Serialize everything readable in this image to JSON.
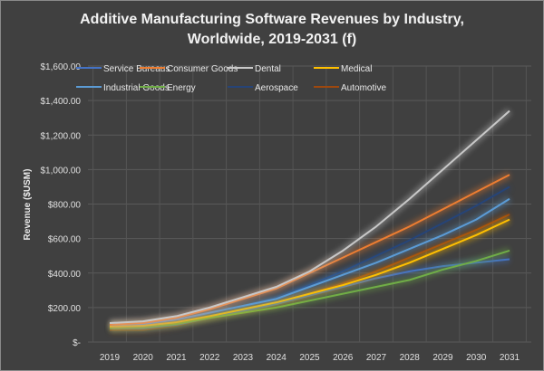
{
  "chart_data": {
    "type": "line",
    "title_lines": [
      "Additive Manufacturing Software Revenues by Industry,",
      "Worldwide, 2019-2031 (f)"
    ],
    "xlabel": "",
    "ylabel": "Revenue ($USM)",
    "ylim": [
      0,
      1600
    ],
    "y_ticks": [
      0,
      200,
      400,
      600,
      800,
      1000,
      1200,
      1400,
      1600
    ],
    "y_tick_labels": [
      "$-",
      "$200.00",
      "$400.00",
      "$600.00",
      "$800.00",
      "$1,000.00",
      "$1,200.00",
      "$1,400.00",
      "$1,600.00"
    ],
    "grid": true,
    "legend_position": "top",
    "x": [
      "2019",
      "2020",
      "2021",
      "2022",
      "2023",
      "2024",
      "2025",
      "2026",
      "2027",
      "2028",
      "2029",
      "2030",
      "2031"
    ],
    "series": [
      {
        "name": "Service Bureaus",
        "color": "#4472c4",
        "values": [
          80,
          80,
          100,
          140,
          180,
          220,
          270,
          320,
          370,
          410,
          440,
          460,
          480
        ]
      },
      {
        "name": "Consumer Goods",
        "color": "#ed7d31",
        "values": [
          100,
          110,
          140,
          190,
          250,
          310,
          400,
          490,
          580,
          670,
          770,
          870,
          970
        ]
      },
      {
        "name": "Dental",
        "color": "#c8c8c8",
        "values": [
          110,
          120,
          150,
          200,
          260,
          320,
          410,
          530,
          670,
          830,
          1000,
          1170,
          1340
        ]
      },
      {
        "name": "Medical",
        "color": "#ffc000",
        "values": [
          90,
          95,
          115,
          150,
          190,
          230,
          280,
          330,
          390,
          460,
          540,
          620,
          710
        ]
      },
      {
        "name": "Industrial Goods",
        "color": "#5b9bd5",
        "values": [
          100,
          105,
          130,
          170,
          210,
          250,
          320,
          390,
          460,
          540,
          620,
          710,
          830
        ]
      },
      {
        "name": "Energy",
        "color": "#70ad47",
        "values": [
          80,
          85,
          105,
          140,
          170,
          200,
          240,
          280,
          320,
          360,
          420,
          470,
          530
        ]
      },
      {
        "name": "Aerospace",
        "color": "#264478",
        "values": [
          85,
          85,
          110,
          160,
          210,
          260,
          330,
          410,
          500,
          590,
          690,
          790,
          900
        ]
      },
      {
        "name": "Automotive",
        "color": "#9e480e",
        "values": [
          70,
          70,
          95,
          140,
          180,
          220,
          280,
          340,
          410,
          490,
          570,
          650,
          740
        ]
      }
    ]
  }
}
